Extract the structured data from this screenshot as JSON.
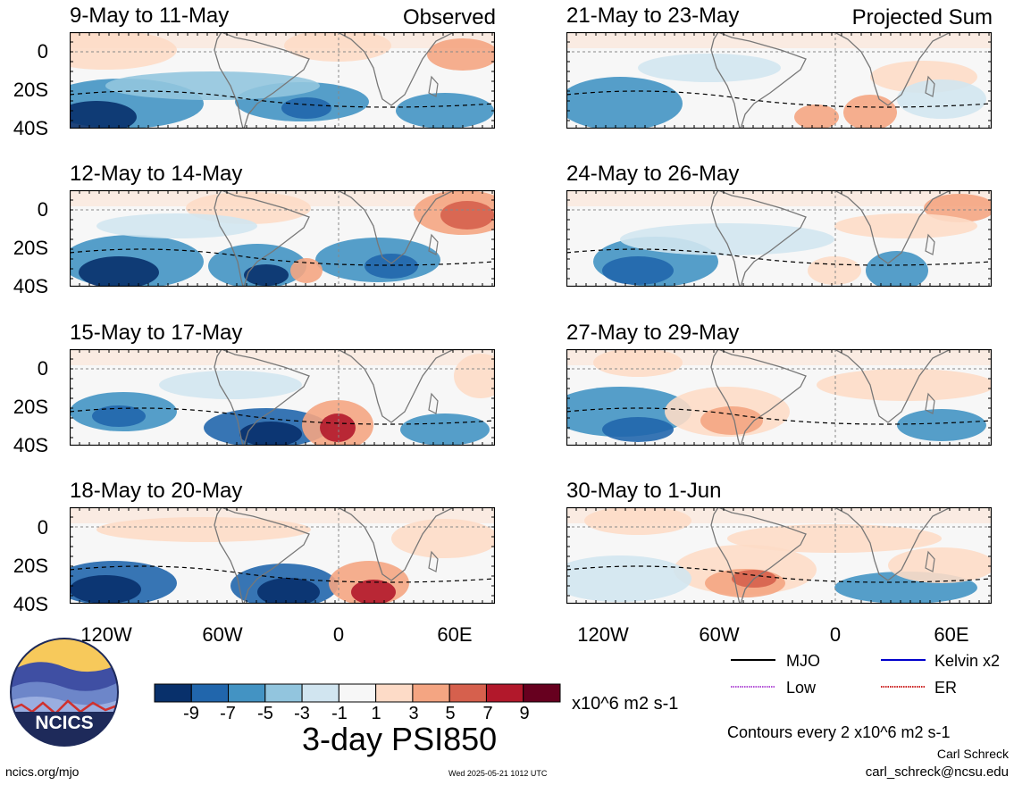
{
  "panels_left": {
    "tag": "Observed",
    "titles": [
      "9-May to 11-May",
      "12-May to 14-May",
      "15-May to 17-May",
      "18-May to 20-May"
    ]
  },
  "panels_right": {
    "tag": "Projected Sum",
    "titles": [
      "21-May to 23-May",
      "24-May to 26-May",
      "27-May to 29-May",
      "30-May to 1-Jun"
    ]
  },
  "lat_labels": [
    "0",
    "20S",
    "40S"
  ],
  "lon_labels": [
    "120W",
    "60W",
    "0",
    "60E"
  ],
  "colorbar": {
    "ticks": [
      "-9",
      "-7",
      "-5",
      "-3",
      "-1",
      "1",
      "3",
      "5",
      "7",
      "9"
    ],
    "colors": [
      "#08306b",
      "#2166ac",
      "#4393c3",
      "#92c5de",
      "#d1e5f0",
      "#f7f7f7",
      "#fddbc7",
      "#f4a582",
      "#d6604d",
      "#b2182b",
      "#67001f"
    ],
    "units": "x10^6 m2 s-1"
  },
  "main_title": "3-day PSI850",
  "legend": {
    "mjo": "MJO",
    "kelvin": "Kelvin x2",
    "low": "Low",
    "er": "ER",
    "mjo_color": "#000000",
    "kelvin_color": "#0000cc",
    "low_color": "#b24fd6",
    "er_color": "#cc2222"
  },
  "contour_note": "Contours every 2 x10^6 m2 s-1",
  "author": "Carl Schreck",
  "email": "carl_schreck@ncsu.edu",
  "website": "ncics.org/mjo",
  "timestamp": "Wed 2025-05-21 1012 UTC",
  "logo_text": "NCICS"
}
